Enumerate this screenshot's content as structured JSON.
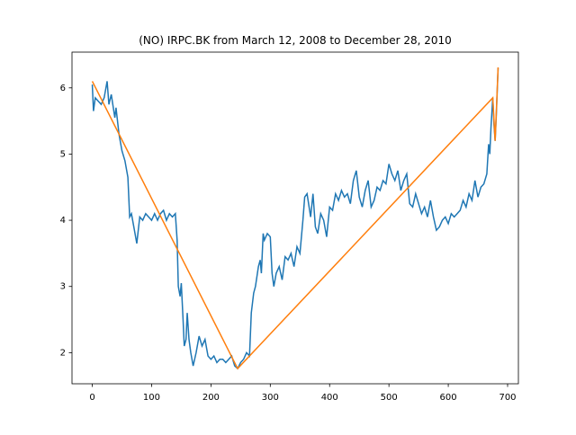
{
  "chart_data": {
    "type": "line",
    "title": "(NO) IRPC.BK from March 12, 2008 to December 28, 2010",
    "xlim": [
      -34.2,
      718.2
    ],
    "ylim": [
      1.53,
      6.54
    ],
    "xticks": [
      0,
      100,
      200,
      300,
      400,
      500,
      600,
      700
    ],
    "yticks": [
      2,
      3,
      4,
      5,
      6
    ],
    "grid": false,
    "series": [
      {
        "color": "#1f77b4",
        "x": [
          0,
          2,
          5,
          10,
          15,
          20,
          25,
          28,
          32,
          38,
          40,
          45,
          50,
          55,
          60,
          63,
          66,
          70,
          75,
          80,
          85,
          90,
          95,
          100,
          105,
          110,
          115,
          120,
          125,
          130,
          135,
          140,
          143,
          145,
          148,
          150,
          153,
          155,
          158,
          160,
          163,
          166,
          170,
          175,
          180,
          185,
          190,
          195,
          200,
          205,
          210,
          215,
          220,
          225,
          230,
          235,
          240,
          245,
          250,
          255,
          260,
          265,
          268,
          272,
          275,
          280,
          283,
          285,
          288,
          290,
          295,
          300,
          303,
          306,
          310,
          315,
          320,
          325,
          330,
          335,
          340,
          345,
          350,
          355,
          358,
          362,
          368,
          372,
          376,
          380,
          385,
          390,
          395,
          400,
          405,
          410,
          415,
          420,
          425,
          430,
          435,
          440,
          445,
          450,
          455,
          460,
          465,
          470,
          475,
          480,
          485,
          490,
          495,
          500,
          505,
          510,
          515,
          520,
          525,
          530,
          535,
          540,
          545,
          550,
          555,
          560,
          565,
          570,
          575,
          580,
          585,
          590,
          595,
          600,
          605,
          610,
          615,
          620,
          625,
          630,
          635,
          640,
          645,
          650,
          655,
          660,
          665,
          668,
          670,
          672,
          675,
          677,
          679,
          681,
          684
        ],
        "values": [
          6.05,
          5.65,
          5.85,
          5.8,
          5.75,
          5.85,
          6.1,
          5.75,
          5.9,
          5.55,
          5.7,
          5.3,
          5.05,
          4.9,
          4.65,
          4.05,
          4.1,
          3.9,
          3.65,
          4.05,
          4.0,
          4.1,
          4.05,
          4.0,
          4.1,
          4.0,
          4.1,
          4.15,
          4.0,
          4.1,
          4.05,
          4.1,
          3.7,
          3.0,
          2.85,
          3.05,
          2.5,
          2.1,
          2.2,
          2.6,
          2.2,
          2.0,
          1.8,
          2.0,
          2.25,
          2.1,
          2.2,
          1.95,
          1.9,
          1.95,
          1.85,
          1.9,
          1.9,
          1.85,
          1.9,
          1.95,
          1.8,
          1.76,
          1.85,
          1.9,
          2.0,
          1.95,
          2.6,
          2.9,
          3.0,
          3.3,
          3.4,
          3.2,
          3.8,
          3.7,
          3.8,
          3.75,
          3.2,
          3.0,
          3.2,
          3.3,
          3.1,
          3.45,
          3.4,
          3.5,
          3.3,
          3.6,
          3.5,
          4.0,
          4.35,
          4.4,
          4.05,
          4.4,
          3.9,
          3.8,
          4.1,
          4.0,
          3.75,
          4.2,
          4.15,
          4.4,
          4.3,
          4.45,
          4.35,
          4.4,
          4.25,
          4.6,
          4.75,
          4.35,
          4.2,
          4.45,
          4.6,
          4.2,
          4.3,
          4.5,
          4.45,
          4.6,
          4.55,
          4.85,
          4.7,
          4.6,
          4.75,
          4.45,
          4.6,
          4.7,
          4.25,
          4.2,
          4.4,
          4.25,
          4.1,
          4.2,
          4.05,
          4.3,
          4.05,
          3.85,
          3.9,
          4.0,
          4.05,
          3.95,
          4.1,
          4.05,
          4.1,
          4.15,
          4.3,
          4.2,
          4.4,
          4.3,
          4.6,
          4.35,
          4.5,
          4.55,
          4.7,
          5.15,
          5.0,
          5.4,
          5.85,
          5.45,
          5.2,
          5.6,
          6.3
        ]
      },
      {
        "color": "#ff7f0e",
        "x": [
          0,
          245,
          675,
          679,
          684
        ],
        "values": [
          6.1,
          1.76,
          5.85,
          5.2,
          6.31
        ]
      }
    ]
  }
}
